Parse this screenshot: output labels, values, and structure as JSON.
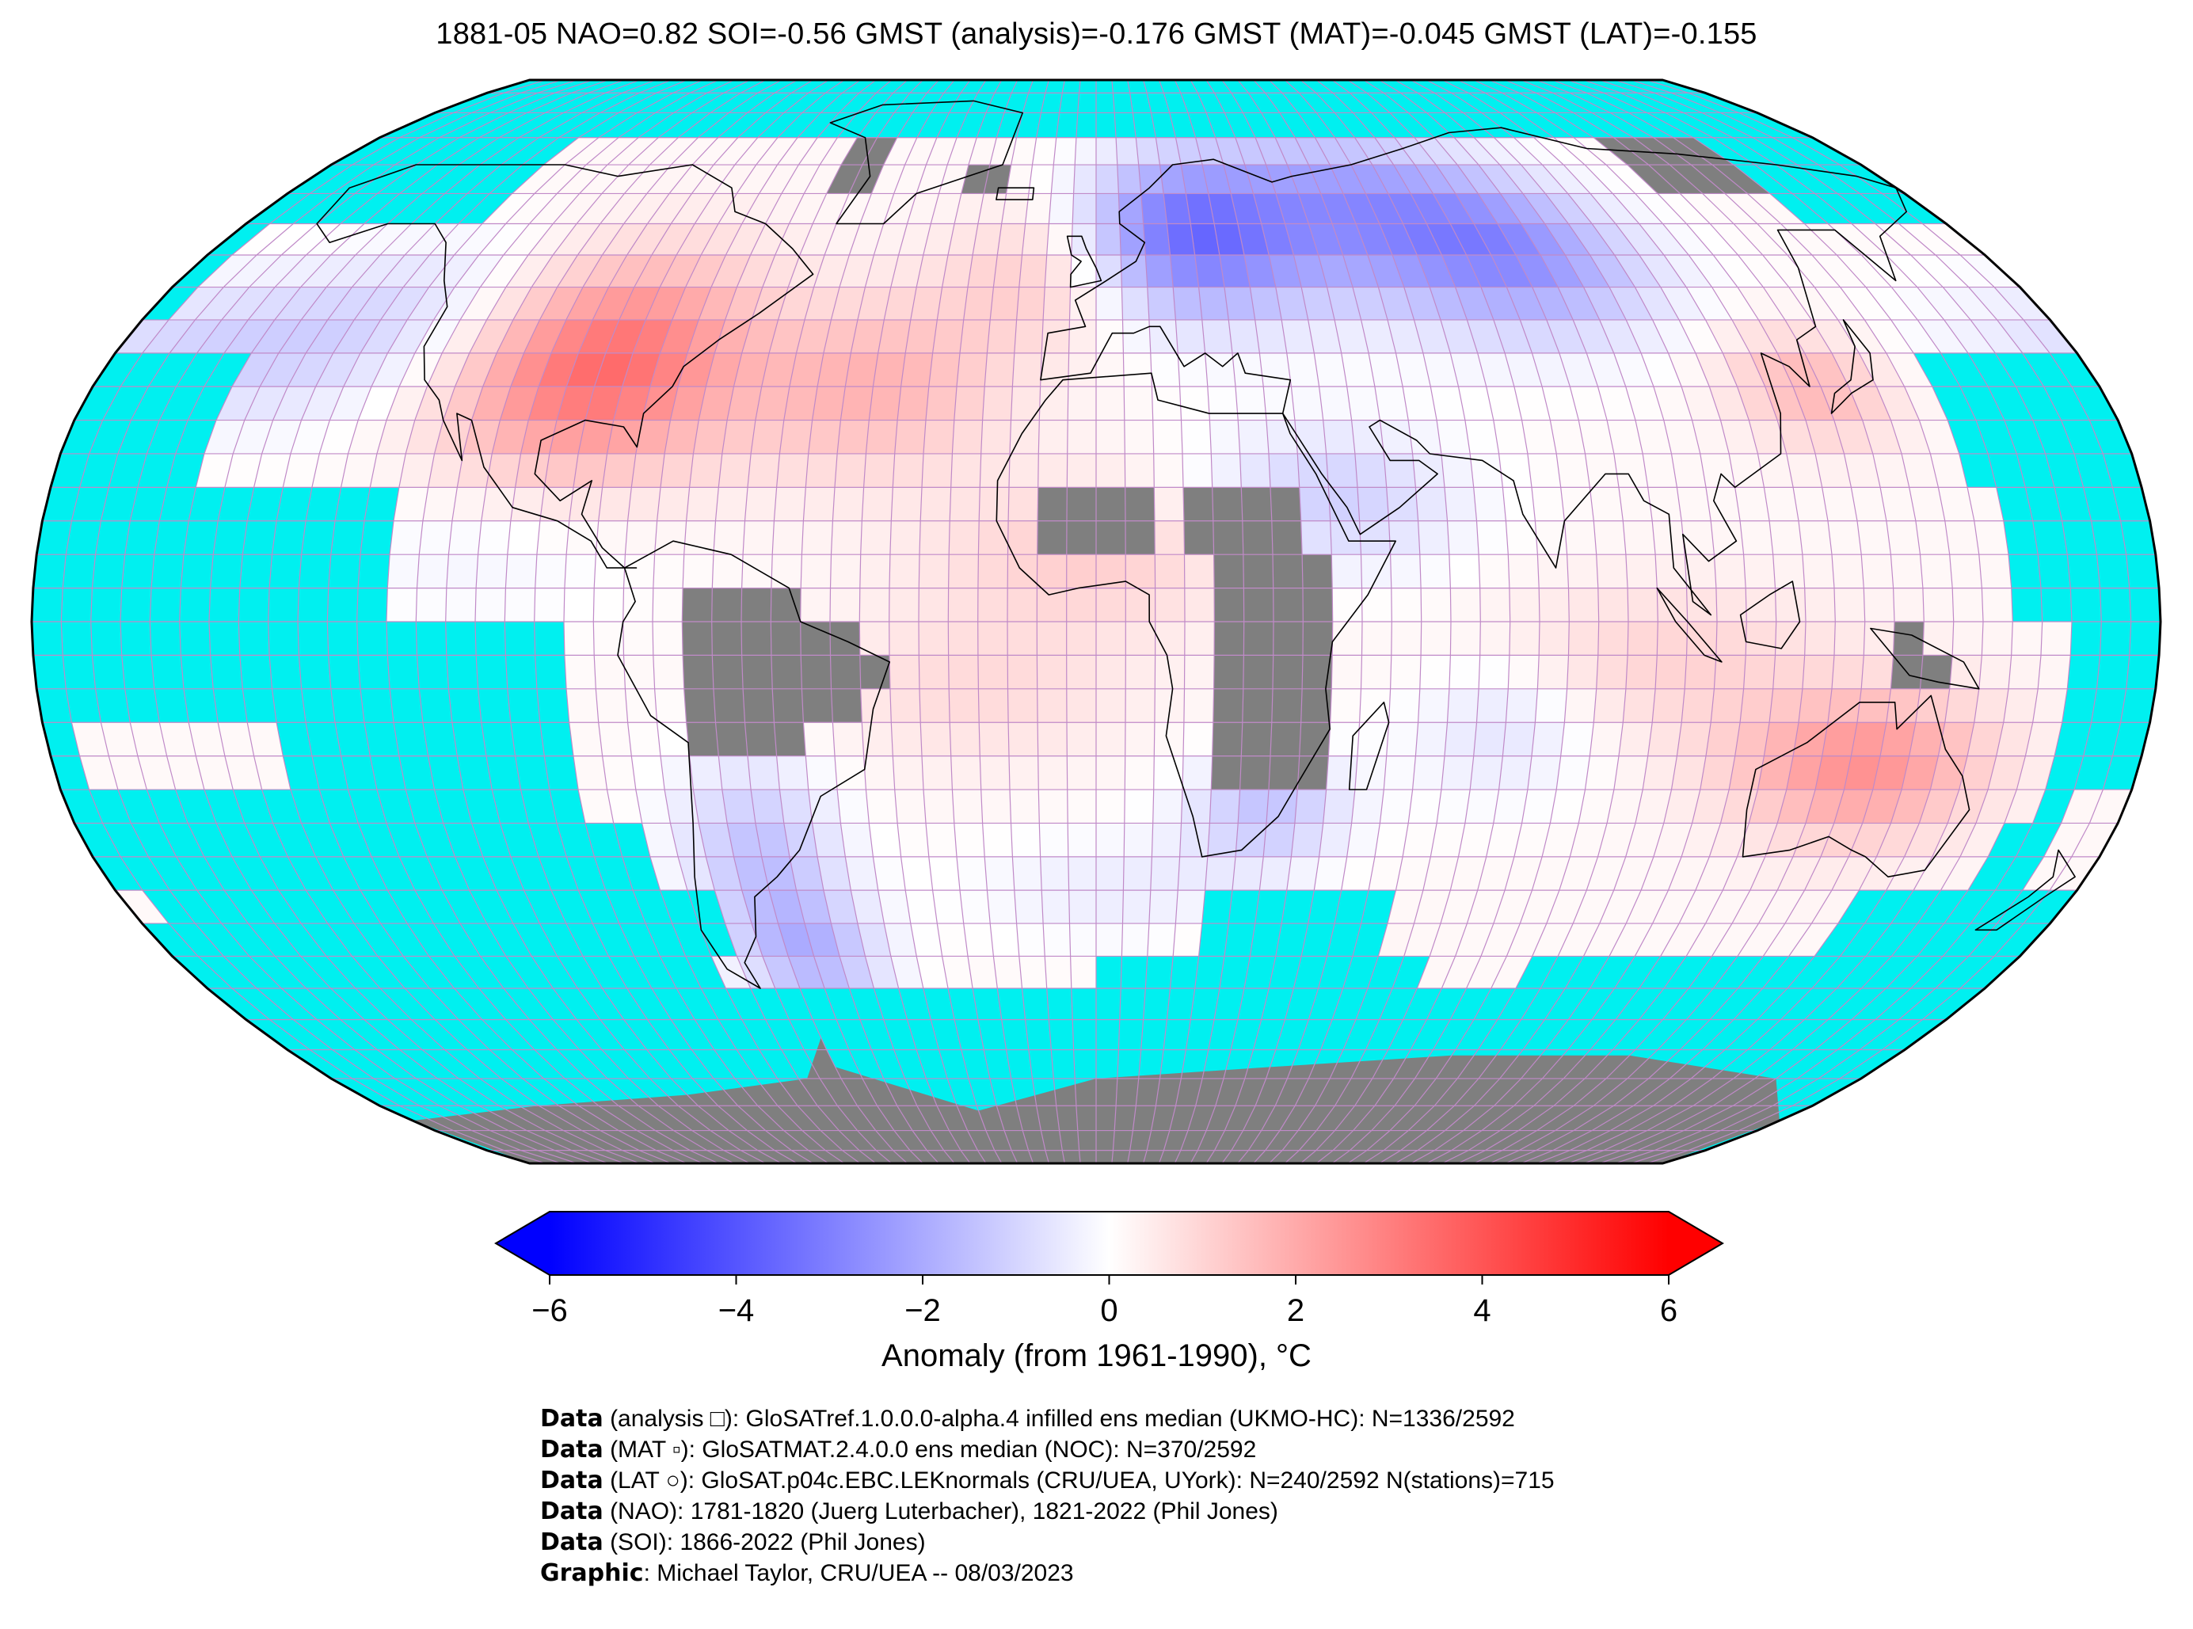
{
  "title": "1881-05 NAO=0.82 SOI=-0.56 GMST (analysis)=-0.176 GMST (MAT)=-0.045 GMST (LAT)=-0.155",
  "map": {
    "projection": "robinson",
    "missing_color": "#00f0f0",
    "land_masked_color": "#7f7f7f",
    "grid_line_color": "#c08ac8",
    "coastline_color": "#000000",
    "grid_step_deg": 5
  },
  "colorbar": {
    "label": "Anomaly (from 1961-1990), °C",
    "min": -6,
    "max": 6,
    "ticks": [
      -6,
      -4,
      -2,
      0,
      2,
      4,
      6
    ],
    "tick_labels": [
      "−6",
      "−4",
      "−2",
      "0",
      "2",
      "4",
      "6"
    ],
    "colors": {
      "low": "#0000ff",
      "mid": "#ffffff",
      "high": "#ff0000"
    },
    "extend": "both"
  },
  "credits": [
    {
      "key": "Data",
      "text": " (analysis □): GloSATref.1.0.0.0-alpha.4 infilled ens median (UKMO-HC): N=1336/2592"
    },
    {
      "key": "Data",
      "text": " (MAT ▫): GloSATMAT.2.4.0.0 ens median (NOC): N=370/2592"
    },
    {
      "key": "Data",
      "text": " (LAT ○): GloSAT.p04c.EBC.LEKnormals (CRU/UEA, UYork): N=240/2592 N(stations)=715"
    },
    {
      "key": "Data",
      "text": " (NAO): 1781-1820 (Juerg Luterbacher), 1821-2022 (Phil Jones)"
    },
    {
      "key": "Data",
      "text": " (SOI): 1866-2022 (Phil Jones)"
    },
    {
      "key": "Graphic",
      "text": ": Michael Taylor, CRU/UEA -- 08/03/2023"
    }
  ]
}
